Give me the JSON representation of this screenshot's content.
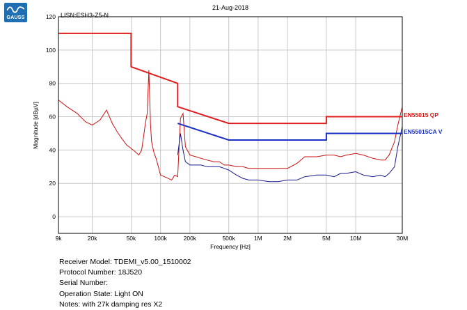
{
  "logo": {
    "text": "GAUSS"
  },
  "info": {
    "receiver_model": {
      "label": "Receiver Model:",
      "value": "TDEMI_v5.00_1510002"
    },
    "protocol_number": {
      "label": "Protocol Number:",
      "value": "18J520"
    },
    "serial_number": {
      "label": "Serial Number:",
      "value": ""
    },
    "operation_state": {
      "label": "Operation State:",
      "value": "Light ON"
    },
    "notes": {
      "label": "Notes:",
      "value": "with 27k damping res X2"
    }
  },
  "chart_data": {
    "type": "line",
    "title": "21-Aug-2018",
    "subtitle": "LISN:ESH3-Z5-N",
    "xlabel": "Frequency [Hz]",
    "ylabel": "Magnitude [dBµV]",
    "x_scale": "log",
    "xlim": [
      9000,
      30000000
    ],
    "ylim": [
      -10,
      120
    ],
    "grid": true,
    "x_ticks": [
      {
        "value": 9000,
        "label": "9k"
      },
      {
        "value": 20000,
        "label": "20k"
      },
      {
        "value": 50000,
        "label": "50k"
      },
      {
        "value": 100000,
        "label": "100k"
      },
      {
        "value": 200000,
        "label": "200k"
      },
      {
        "value": 500000,
        "label": "500k"
      },
      {
        "value": 1000000,
        "label": "1M"
      },
      {
        "value": 2000000,
        "label": "2M"
      },
      {
        "value": 5000000,
        "label": "5M"
      },
      {
        "value": 10000000,
        "label": "10M"
      },
      {
        "value": 30000000,
        "label": "30M"
      }
    ],
    "y_ticks": [
      0,
      20,
      40,
      60,
      80,
      100,
      120
    ],
    "colors": {
      "qp_limit": "#e11c1c",
      "qp_trace": "#cc1010",
      "av_limit": "#1a2fc4",
      "av_trace": "#16168c",
      "grid": "#c8c8c8"
    },
    "series": [
      {
        "name": "EN55015 QP",
        "role": "limit",
        "x": [
          9000,
          50000,
          50000,
          150000,
          150000,
          500000,
          5000000,
          5000000,
          30000000
        ],
        "y": [
          110,
          110,
          90,
          80,
          66,
          56,
          56,
          60,
          60
        ]
      },
      {
        "name": "EN55015CA V",
        "role": "limit",
        "x": [
          150000,
          500000,
          5000000,
          5000000,
          30000000
        ],
        "y": [
          56,
          46,
          46,
          50,
          50
        ]
      },
      {
        "name": "",
        "role": "qp-measurement",
        "x": [
          9000,
          11000,
          14000,
          17000,
          20000,
          24000,
          28000,
          32000,
          36000,
          40000,
          45000,
          50000,
          55000,
          60000,
          64000,
          67000,
          70000,
          73000,
          76000,
          79000,
          81000,
          83000,
          86000,
          90000,
          95000,
          100000,
          110000,
          120000,
          130000,
          140000,
          150000,
          160000,
          170000,
          180000,
          200000,
          230000,
          260000,
          300000,
          350000,
          400000,
          450000,
          500000,
          600000,
          700000,
          800000,
          1000000,
          1300000,
          1600000,
          2000000,
          2500000,
          3000000,
          4000000,
          5000000,
          6000000,
          7000000,
          8000000,
          10000000,
          12000000,
          15000000,
          18000000,
          20000000,
          22000000,
          25000000,
          27000000,
          30000000
        ],
        "y": [
          70,
          66,
          62,
          57,
          55,
          58,
          64,
          56,
          51,
          47,
          43,
          41,
          39,
          37,
          40,
          48,
          56,
          62,
          88,
          55,
          45,
          42,
          38,
          35,
          30,
          25,
          24,
          23,
          22,
          25,
          24,
          59,
          62,
          42,
          37,
          36,
          35,
          34,
          33,
          33,
          31,
          31,
          30,
          30,
          29,
          29,
          29,
          29,
          29,
          32,
          36,
          36,
          37,
          37,
          36,
          37,
          38,
          37,
          35,
          34,
          34,
          37,
          45,
          55,
          66
        ]
      },
      {
        "name": "",
        "role": "av-measurement",
        "x": [
          150000,
          160000,
          170000,
          180000,
          200000,
          230000,
          260000,
          300000,
          350000,
          400000,
          450000,
          500000,
          600000,
          700000,
          800000,
          1000000,
          1300000,
          1600000,
          2000000,
          2500000,
          3000000,
          4000000,
          5000000,
          6000000,
          7000000,
          8000000,
          10000000,
          12000000,
          15000000,
          18000000,
          20000000,
          22000000,
          25000000,
          27000000,
          30000000
        ],
        "y": [
          37,
          50,
          40,
          33,
          31,
          31,
          31,
          30,
          30,
          30,
          29,
          28,
          25,
          23,
          22,
          22,
          21,
          21,
          22,
          22,
          24,
          25,
          25,
          24,
          26,
          26,
          27,
          25,
          24,
          25,
          24,
          26,
          30,
          42,
          54
        ]
      }
    ],
    "legend": [
      {
        "label": "EN55015 QP",
        "color": "#d81414"
      },
      {
        "label": "EN55015CA V",
        "color": "#1a2fc4"
      }
    ]
  }
}
